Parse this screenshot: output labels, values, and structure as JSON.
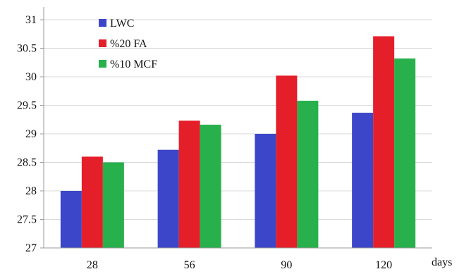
{
  "chart_data": {
    "type": "bar",
    "categories": [
      "28",
      "56",
      "90",
      "120"
    ],
    "series": [
      {
        "name": "LWC",
        "values": [
          28.0,
          28.72,
          29.0,
          29.37
        ],
        "color": "#3c46c8"
      },
      {
        "name": "%20 FA",
        "values": [
          28.6,
          29.23,
          30.02,
          30.71
        ],
        "color": "#e41f2a"
      },
      {
        "name": "%10 MCF",
        "values": [
          28.5,
          29.16,
          29.58,
          30.32
        ],
        "color": "#27b04b"
      }
    ],
    "title": "",
    "xlabel": "days",
    "ylabel": "",
    "ylim": [
      27,
      31
    ],
    "yticks": [
      "27",
      "27.5",
      "28",
      "28.5",
      "29",
      "29.5",
      "30",
      "30.5",
      "31"
    ],
    "grid": true,
    "legend": "top-left"
  }
}
